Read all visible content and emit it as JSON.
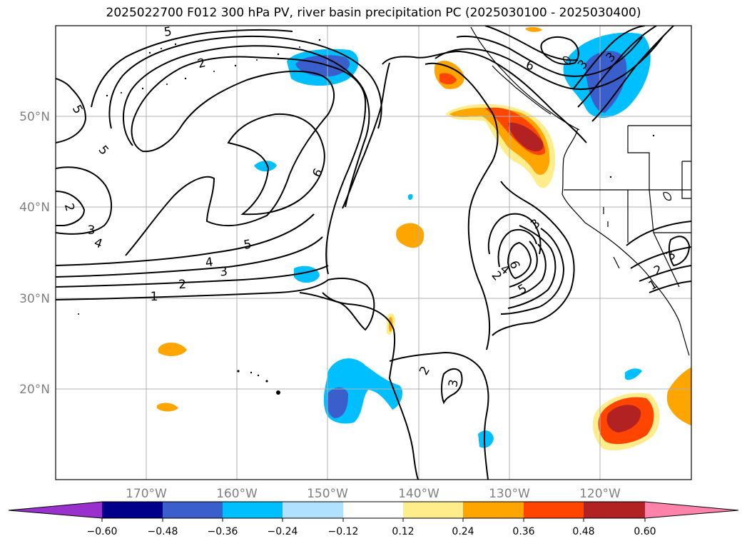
{
  "title": "2025022700 F012 300 hPa PV, river basin precipitation PC (2025030100 - 2025030400)",
  "map": {
    "lat_ticks": [
      "50°N",
      "40°N",
      "30°N",
      "20°N"
    ],
    "lon_ticks": [
      "170°W",
      "160°W",
      "150°W",
      "140°W",
      "130°W",
      "120°W"
    ],
    "contour_labels": [
      "5",
      "2",
      "5",
      "5",
      "2",
      "3",
      "4",
      "6",
      "5",
      "4",
      "3",
      "2",
      "1",
      "6",
      "3",
      "6",
      "5",
      "4",
      "3",
      "2",
      "3",
      "3",
      "2",
      "1",
      "3",
      "2"
    ]
  },
  "colorbar": {
    "tick_labels": [
      "−0.60",
      "−0.48",
      "−0.36",
      "−0.24",
      "−0.12",
      "0.12",
      "0.24",
      "0.36",
      "0.48",
      "0.60"
    ],
    "colors": [
      "#9932cc",
      "#00008b",
      "#3a5fcd",
      "#00bfff",
      "#b0e2ff",
      "#ffffff",
      "#ffec8b",
      "#ffa500",
      "#ff4500",
      "#b22222",
      "#ff82ab"
    ]
  }
}
